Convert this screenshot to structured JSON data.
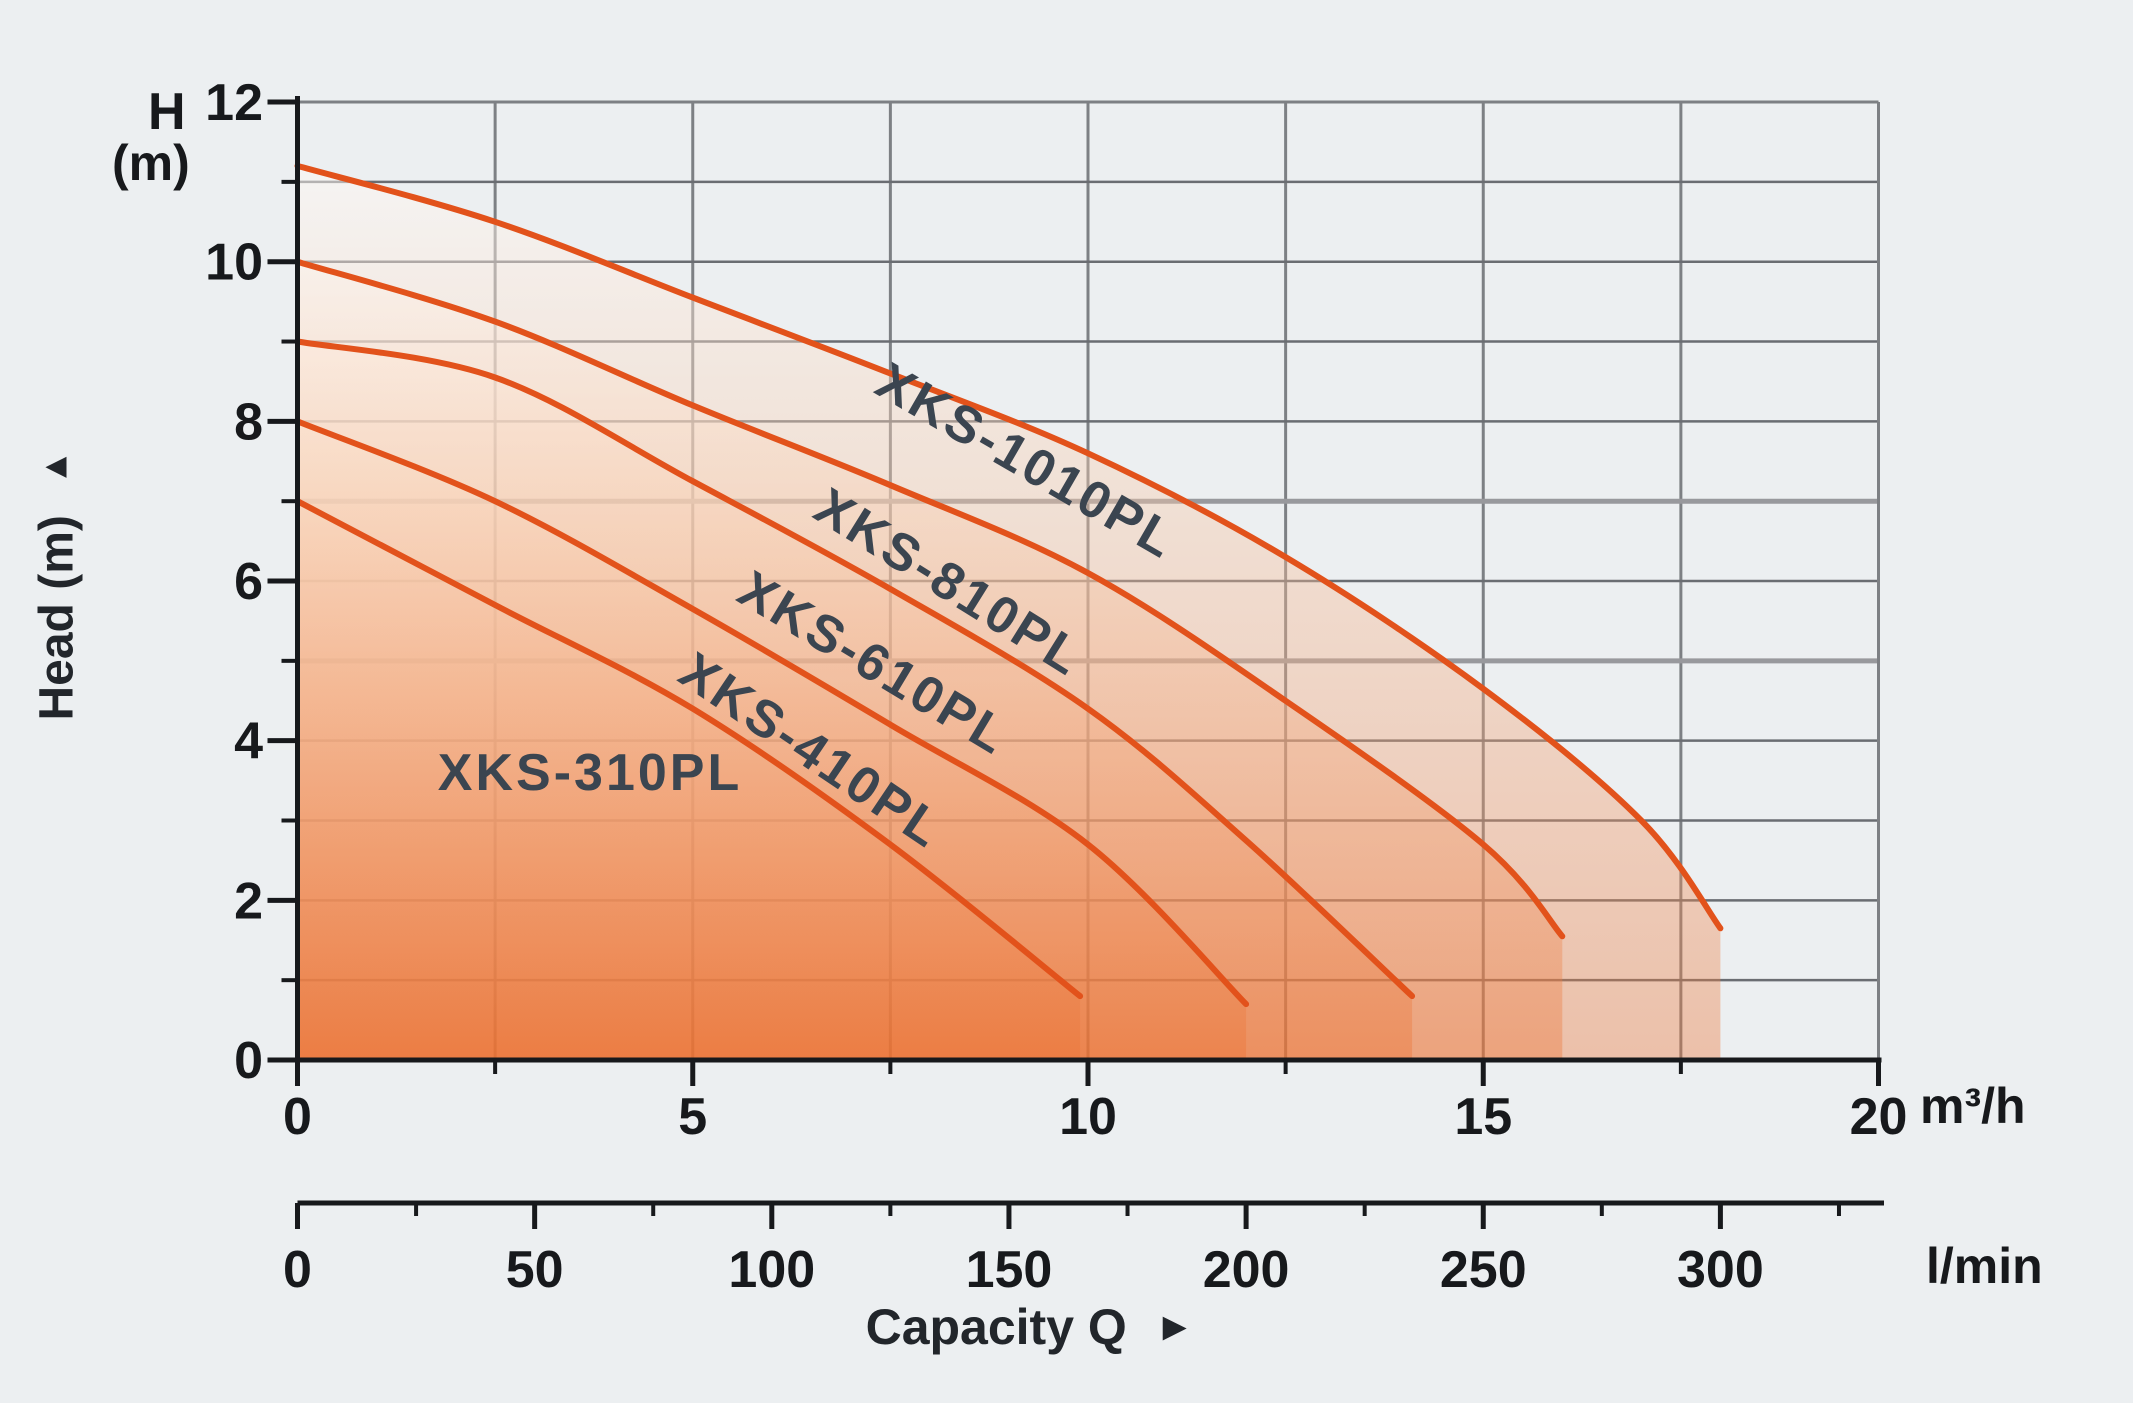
{
  "page": {
    "background": "#eceff1"
  },
  "labels": {
    "y_axis_letter": "H",
    "y_axis_unit": "(m)",
    "y_axis_title": "Head (m)",
    "y_axis_arrow": "▲",
    "x_axis_title": "Capacity Q",
    "x_axis_arrow": "►",
    "x_unit_primary": "m³/h",
    "x_unit_secondary": "l/min"
  },
  "chart_data": {
    "type": "line",
    "title": "",
    "xlabel": "Capacity Q",
    "ylabel": "Head (m)",
    "grid": true,
    "legend_position": "inline-curve-labels",
    "x_axis_primary": {
      "unit": "m³/h",
      "ticks": [
        0,
        5,
        10,
        15,
        20
      ],
      "minor_tick_step": 2.5,
      "range": [
        0,
        20
      ],
      "grid_step": 2.5
    },
    "x_axis_secondary": {
      "unit": "l/min",
      "ticks": [
        0,
        50,
        100,
        150,
        200,
        250,
        300
      ],
      "minor_tick_step": 25,
      "range": [
        0,
        333
      ]
    },
    "y_axis": {
      "axis_letter": "H",
      "unit_label": "(m)",
      "ticks": [
        0,
        2,
        4,
        6,
        8,
        10,
        12
      ],
      "minor_tick_step": 1,
      "range": [
        0,
        12
      ],
      "grid_step": 1
    },
    "emphasized_gridlines_h": [
      5,
      7
    ],
    "series": [
      {
        "name": "XKS-310PL",
        "points": [
          [
            0,
            7.0
          ],
          [
            2.5,
            5.7
          ],
          [
            5,
            4.4
          ],
          [
            7.5,
            2.7
          ],
          [
            9.9,
            0.8
          ]
        ],
        "label": {
          "q": 3.7,
          "h": 3.38,
          "angle": 0
        }
      },
      {
        "name": "XKS-410PL",
        "points": [
          [
            0,
            8.0
          ],
          [
            2.5,
            7.0
          ],
          [
            5,
            5.65
          ],
          [
            7.5,
            4.2
          ],
          [
            10,
            2.7
          ],
          [
            12,
            0.7
          ]
        ],
        "label": {
          "q": 6.38,
          "h": 3.7,
          "angle": 34
        }
      },
      {
        "name": "XKS-610PL",
        "points": [
          [
            0,
            9.0
          ],
          [
            2.5,
            8.55
          ],
          [
            5,
            7.25
          ],
          [
            7.5,
            5.9
          ],
          [
            10,
            4.4
          ],
          [
            12,
            2.75
          ],
          [
            14.1,
            0.8
          ]
        ],
        "label": {
          "q": 7.18,
          "h": 4.79,
          "angle": 31
        }
      },
      {
        "name": "XKS-810PL",
        "points": [
          [
            0,
            10.0
          ],
          [
            2.5,
            9.25
          ],
          [
            5,
            8.2
          ],
          [
            7.5,
            7.2
          ],
          [
            10,
            6.1
          ],
          [
            12.5,
            4.5
          ],
          [
            15,
            2.7
          ],
          [
            16,
            1.55
          ]
        ],
        "label": {
          "q": 8.13,
          "h": 5.8,
          "angle": 32
        }
      },
      {
        "name": "XKS-1010PL",
        "points": [
          [
            0,
            11.2
          ],
          [
            2.5,
            10.5
          ],
          [
            5,
            9.55
          ],
          [
            7.5,
            8.6
          ],
          [
            10,
            7.6
          ],
          [
            12.5,
            6.3
          ],
          [
            15,
            4.65
          ],
          [
            17,
            3.0
          ],
          [
            18,
            1.65
          ]
        ],
        "label": {
          "q": 9.11,
          "h": 7.32,
          "angle": 30
        }
      }
    ],
    "colors": {
      "curve": "#e2521b",
      "fill_base": "#eb7030",
      "background": "#eceff1",
      "gridline": "#6a6d72",
      "gridline_vertical": "#7d8084",
      "gridline_emphasis": "#98999d",
      "axis": "#17191c",
      "tick_label": "#17191c",
      "curve_label": "#3b4550"
    }
  }
}
